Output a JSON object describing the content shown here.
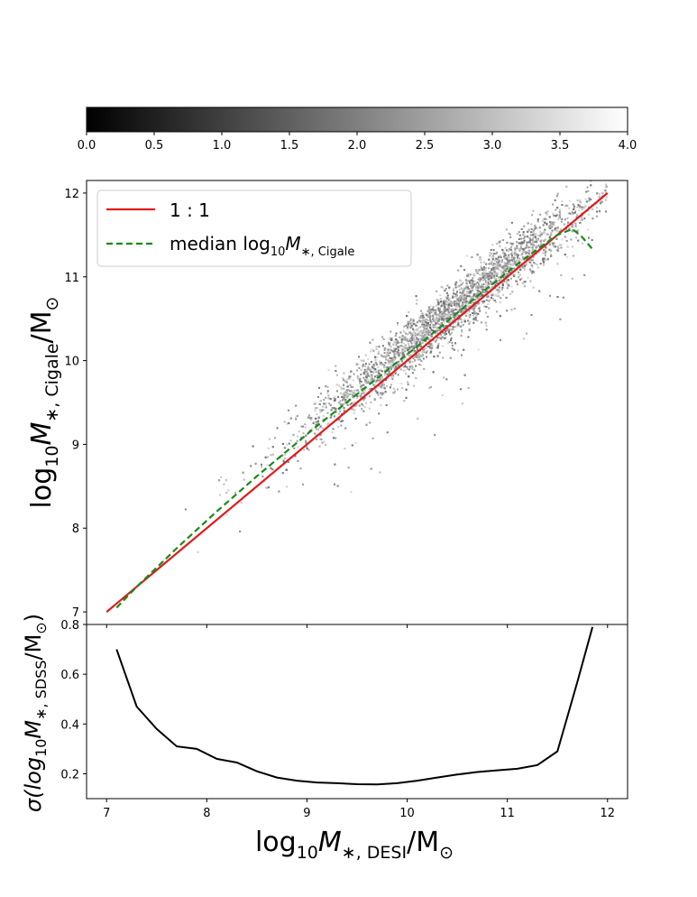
{
  "chart_data": [
    {
      "type": "colorbar",
      "colormap": "gray",
      "ticks": [
        "0.0",
        "0.5",
        "1.0",
        "1.5",
        "2.0",
        "2.5",
        "3.0",
        "3.5",
        "4.0"
      ],
      "range": [
        0,
        4
      ]
    },
    {
      "type": "scatter",
      "xlabel": "log10 M*,DESI / M☉",
      "ylabel": "log10 M*,Cigale / M☉",
      "xlim": [
        6.8,
        12.2
      ],
      "ylim": [
        6.85,
        12.15
      ],
      "x_ticks": [
        "7",
        "8",
        "9",
        "10",
        "11",
        "12"
      ],
      "y_ticks": [
        "7",
        "8",
        "9",
        "10",
        "11",
        "12"
      ],
      "legend_position": "top-left",
      "series": [
        {
          "name": "1 : 1",
          "line_style": "solid",
          "color": "#e01b1b",
          "x": [
            7.0,
            12.0
          ],
          "y": [
            7.0,
            12.0
          ]
        },
        {
          "name": "median log10 M*,Cigale",
          "line_style": "dashed",
          "color": "#1a8a1a",
          "x": [
            7.1,
            7.3,
            7.5,
            7.7,
            7.9,
            8.1,
            8.3,
            8.5,
            8.7,
            8.9,
            9.1,
            9.3,
            9.5,
            9.7,
            9.9,
            10.1,
            10.3,
            10.5,
            10.7,
            10.9,
            11.1,
            11.3,
            11.5,
            11.65,
            11.75,
            11.85
          ],
          "y": [
            7.05,
            7.3,
            7.53,
            7.76,
            7.98,
            8.2,
            8.41,
            8.62,
            8.82,
            9.02,
            9.22,
            9.41,
            9.6,
            9.79,
            9.98,
            10.17,
            10.37,
            10.57,
            10.77,
            10.96,
            11.15,
            11.33,
            11.5,
            11.57,
            11.47,
            11.33
          ]
        }
      ],
      "density_colormap": "gray_r"
    },
    {
      "type": "line",
      "xlabel": "log10 M*,DESI / M☉",
      "ylabel": "σ(log10 M*,SDSS / M☉)",
      "xlim": [
        6.8,
        12.2
      ],
      "ylim": [
        0.1,
        0.8
      ],
      "x_ticks": [
        "7",
        "8",
        "9",
        "10",
        "11",
        "12"
      ],
      "y_ticks": [
        "0.2",
        "0.4",
        "0.6",
        "0.8"
      ],
      "series": [
        {
          "color": "#000000",
          "x": [
            7.1,
            7.3,
            7.5,
            7.7,
            7.9,
            8.1,
            8.3,
            8.5,
            8.7,
            8.9,
            9.1,
            9.3,
            9.5,
            9.7,
            9.9,
            10.1,
            10.3,
            10.5,
            10.7,
            10.9,
            11.1,
            11.3,
            11.5,
            11.7,
            11.85
          ],
          "y": [
            0.7,
            0.47,
            0.38,
            0.31,
            0.3,
            0.26,
            0.245,
            0.21,
            0.185,
            0.172,
            0.165,
            0.162,
            0.158,
            0.157,
            0.162,
            0.172,
            0.185,
            0.197,
            0.207,
            0.214,
            0.22,
            0.235,
            0.29,
            0.57,
            0.79
          ]
        }
      ]
    }
  ],
  "text": {
    "legend_1to1": "1 : 1",
    "legend_median_prefix": "median log",
    "legend_median_sub10": "10",
    "legend_median_M": "M",
    "legend_median_sub": "∗, Cigale",
    "xlabel_log": "log",
    "xlabel_10": "10",
    "xlabel_M": "M",
    "xlabel_sub": "∗, DESI",
    "xlabel_rest": "/M",
    "sun_sub": "⊙",
    "ylabel_top_log": "log",
    "ylabel_top_10": "10",
    "ylabel_top_M": "M",
    "ylabel_top_sub": "∗, Cigale",
    "ylabel_top_rest": "/M",
    "ylabel_bot_sigma": "σ(log",
    "ylabel_bot_10": "10",
    "ylabel_bot_M": "M",
    "ylabel_bot_sub": "∗, SDSS",
    "ylabel_bot_rest": "/M",
    "ylabel_bot_close": ")"
  }
}
